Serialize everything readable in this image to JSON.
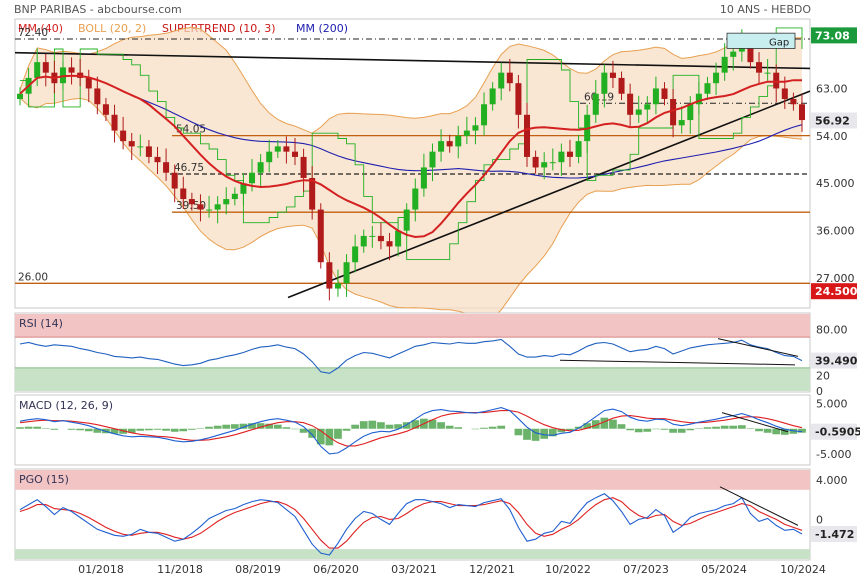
{
  "header": {
    "title": "BNP PARIBAS - abcbourse.com",
    "period": "10 ANS - HEBDO"
  },
  "colors": {
    "mm40": "#d42020",
    "boll": "#e8a050",
    "supertrend": "#c81818",
    "mm200": "#2020b0",
    "price_up": "#22b022",
    "price_down": "#b01a1a",
    "rsi_line": "#2060c0",
    "macd_line": "#2060d0",
    "signal_line": "#e02020",
    "hist": "#3a9a3a",
    "band_top": "#f2c4c4",
    "band_bottom": "#c8e2c8",
    "price_box": "#1a9a3a",
    "low_box": "#d81818",
    "level_line": "#c06010",
    "gap_box": "#c8eef0"
  },
  "chart_data": [
    {
      "type": "candlestick",
      "panel": "price",
      "legend": [
        {
          "label": "MM (40)",
          "color": "#d42020"
        },
        {
          "label": "BOLL (20, 2)",
          "color": "#e8a050"
        },
        {
          "label": "SUPERTREND (10, 3)",
          "color": "#c81818"
        },
        {
          "label": "MM (200)",
          "color": "#2020b0"
        }
      ],
      "y_ticks": [
        "63.00",
        "54.00",
        "45.000",
        "36.000",
        "27.000"
      ],
      "y_tick_values": [
        63,
        54,
        45,
        36,
        27
      ],
      "ylim": [
        21.5,
        76
      ],
      "x_ticks": [
        "01/2018",
        "11/2018",
        "08/2019",
        "06/2020",
        "03/2021",
        "12/2021",
        "10/2022",
        "07/2023",
        "05/2024",
        "10/2024"
      ],
      "last_price": "56.92",
      "last_price_value": 56.92,
      "high_marker": "73.08",
      "high_marker_value": 73.08,
      "low_marker": "24.500",
      "low_marker_value": 24.5,
      "levels": [
        {
          "label": "72.40",
          "value": 72.4,
          "style": "dashdot"
        },
        {
          "label": "54.05",
          "value": 54.05,
          "style": "solid"
        },
        {
          "label": "46.75",
          "value": 46.75,
          "style": "dashed"
        },
        {
          "label": "39.50",
          "value": 39.5,
          "style": "solid"
        },
        {
          "label": "26.00",
          "value": 26.0,
          "style": "solid"
        },
        {
          "label": "60.19",
          "value": 60.19,
          "style": "dashdot"
        }
      ],
      "annotation": "Gap",
      "close_series": [
        62,
        65,
        68,
        66,
        64,
        67,
        66,
        65,
        63,
        60,
        58,
        55,
        53,
        52,
        52,
        50,
        49,
        47,
        44,
        42,
        41,
        40,
        40,
        41,
        42,
        43,
        45,
        47,
        49,
        51,
        52,
        51,
        50,
        46,
        40,
        30,
        25,
        26,
        30,
        33,
        35,
        35,
        34,
        33,
        36,
        40,
        44,
        48,
        51,
        53,
        52,
        54,
        55,
        56,
        60,
        63,
        66,
        64,
        58,
        50,
        48,
        49,
        49,
        51,
        50,
        53,
        58,
        62,
        66,
        65,
        62,
        58,
        59,
        60,
        63,
        61,
        56,
        57,
        60,
        62,
        64,
        66,
        69,
        70,
        72,
        68,
        66,
        66,
        63,
        61,
        60,
        57
      ]
    },
    {
      "type": "line",
      "panel": "rsi",
      "title": "RSI (14)",
      "y_ticks": [
        "80.00",
        "20",
        "0"
      ],
      "y_tick_values": [
        80,
        20,
        0
      ],
      "ylim": [
        0,
        100
      ],
      "bands": [
        70,
        30
      ],
      "last_value": "39.490",
      "values": [
        61,
        63,
        60,
        58,
        60,
        59,
        58,
        55,
        53,
        50,
        48,
        45,
        44,
        43,
        44,
        42,
        41,
        38,
        35,
        33,
        34,
        36,
        40,
        42,
        45,
        47,
        50,
        54,
        57,
        58,
        60,
        57,
        55,
        48,
        38,
        25,
        23,
        30,
        40,
        46,
        50,
        49,
        46,
        43,
        48,
        53,
        58,
        60,
        63,
        62,
        61,
        63,
        62,
        62,
        64,
        65,
        67,
        58,
        48,
        44,
        44,
        46,
        45,
        48,
        47,
        52,
        58,
        62,
        63,
        61,
        56,
        51,
        53,
        54,
        58,
        55,
        48,
        52,
        56,
        58,
        60,
        61,
        62,
        63,
        66,
        60,
        57,
        55,
        50,
        46,
        45,
        39.49
      ]
    },
    {
      "type": "line",
      "panel": "macd",
      "title": "MACD (12, 26, 9)",
      "y_ticks": [
        "5.000",
        "0",
        "-5.000"
      ],
      "y_tick_values": [
        5,
        0,
        -5
      ],
      "ylim": [
        -7,
        6.5
      ],
      "last_value": "-0.5905",
      "macd": [
        1.5,
        1.8,
        2.0,
        1.8,
        1.4,
        1.6,
        1.3,
        1.0,
        0.6,
        0.0,
        -0.5,
        -1.0,
        -1.4,
        -1.6,
        -1.5,
        -1.6,
        -1.7,
        -2.0,
        -2.4,
        -2.6,
        -2.5,
        -2.2,
        -1.8,
        -1.3,
        -0.8,
        -0.3,
        0.3,
        0.9,
        1.4,
        1.8,
        2.0,
        1.7,
        1.3,
        0.4,
        -1.2,
        -3.5,
        -5.0,
        -4.8,
        -3.8,
        -2.6,
        -1.5,
        -0.8,
        -0.5,
        -0.6,
        -0.1,
        0.8,
        1.9,
        3.0,
        3.6,
        3.8,
        3.5,
        3.4,
        3.2,
        3.1,
        3.4,
        3.8,
        4.2,
        3.6,
        2.0,
        0.3,
        -0.8,
        -1.2,
        -1.3,
        -0.9,
        -0.7,
        0.1,
        1.2,
        2.4,
        3.6,
        3.9,
        3.4,
        2.3,
        1.7,
        1.5,
        1.9,
        1.8,
        0.9,
        0.6,
        0.9,
        1.3,
        1.6,
        1.9,
        2.3,
        2.6,
        3.0,
        2.5,
        1.8,
        1.2,
        0.5,
        -0.1,
        -0.4,
        -0.59
      ],
      "signal": [
        1.2,
        1.4,
        1.6,
        1.7,
        1.6,
        1.6,
        1.5,
        1.3,
        1.1,
        0.8,
        0.4,
        0.0,
        -0.4,
        -0.8,
        -1.1,
        -1.3,
        -1.5,
        -1.6,
        -1.8,
        -2.1,
        -2.3,
        -2.3,
        -2.2,
        -1.9,
        -1.6,
        -1.2,
        -0.7,
        -0.2,
        0.3,
        0.8,
        1.2,
        1.4,
        1.4,
        1.2,
        0.6,
        -0.4,
        -1.7,
        -2.8,
        -3.4,
        -3.4,
        -3.0,
        -2.4,
        -1.8,
        -1.4,
        -1.0,
        -0.5,
        0.2,
        1.0,
        1.8,
        2.5,
        2.9,
        3.1,
        3.2,
        3.2,
        3.2,
        3.4,
        3.6,
        3.6,
        3.3,
        2.5,
        1.6,
        0.8,
        0.2,
        -0.2,
        -0.4,
        -0.3,
        0.1,
        0.7,
        1.4,
        2.1,
        2.5,
        2.6,
        2.4,
        2.1,
        2.0,
        2.0,
        1.7,
        1.4,
        1.2,
        1.2,
        1.3,
        1.5,
        1.7,
        2.0,
        2.3,
        2.4,
        2.3,
        2.0,
        1.6,
        1.1,
        0.6,
        0.2
      ]
    },
    {
      "type": "line",
      "panel": "pgo",
      "title": "PGO (15)",
      "y_ticks": [
        "4.000",
        "0"
      ],
      "y_tick_values": [
        4,
        0
      ],
      "ylim": [
        -4,
        5
      ],
      "bands": [
        3,
        -3
      ],
      "last_value": "-1.472",
      "pgo": [
        1.0,
        1.5,
        2.0,
        1.3,
        0.5,
        1.2,
        0.8,
        0.2,
        -0.4,
        -1.0,
        -1.3,
        -1.6,
        -1.7,
        -1.5,
        -1.0,
        -1.3,
        -1.4,
        -1.8,
        -2.2,
        -2.0,
        -1.4,
        -0.7,
        0.1,
        0.5,
        0.9,
        1.1,
        1.5,
        1.8,
        2.0,
        1.9,
        1.7,
        1.0,
        0.3,
        -1.1,
        -2.5,
        -3.4,
        -3.6,
        -2.4,
        -1.0,
        0.1,
        0.8,
        0.6,
        0.0,
        -0.5,
        0.6,
        1.6,
        2.0,
        2.0,
        1.8,
        1.6,
        1.2,
        1.5,
        1.4,
        1.3,
        1.7,
        1.9,
        2.1,
        1.0,
        -0.8,
        -2.2,
        -2.0,
        -1.4,
        -1.2,
        -0.2,
        -0.4,
        0.7,
        1.7,
        2.2,
        2.6,
        1.9,
        0.8,
        -0.5,
        0.0,
        0.2,
        1.0,
        0.4,
        -1.3,
        -0.7,
        0.2,
        0.6,
        0.8,
        1.0,
        1.4,
        1.6,
        2.2,
        0.6,
        -0.2,
        0.1,
        -0.6,
        -1.1,
        -1.0,
        -1.47
      ],
      "signal": [
        0.8,
        1.1,
        1.5,
        1.5,
        1.1,
        1.0,
        0.9,
        0.6,
        0.2,
        -0.3,
        -0.8,
        -1.2,
        -1.5,
        -1.6,
        -1.4,
        -1.3,
        -1.3,
        -1.5,
        -1.8,
        -2.0,
        -1.8,
        -1.4,
        -0.8,
        -0.2,
        0.3,
        0.7,
        1.0,
        1.3,
        1.6,
        1.8,
        1.8,
        1.5,
        1.0,
        0.1,
        -1.0,
        -2.1,
        -2.9,
        -2.9,
        -2.2,
        -1.2,
        -0.3,
        0.2,
        0.3,
        0.0,
        0.1,
        0.6,
        1.2,
        1.6,
        1.8,
        1.8,
        1.6,
        1.4,
        1.4,
        1.4,
        1.5,
        1.7,
        1.9,
        1.6,
        0.7,
        -0.5,
        -1.4,
        -1.7,
        -1.5,
        -1.0,
        -0.6,
        0.0,
        0.8,
        1.5,
        2.0,
        2.2,
        1.8,
        1.0,
        0.4,
        0.1,
        0.4,
        0.5,
        -0.2,
        -0.6,
        -0.4,
        0.0,
        0.4,
        0.7,
        1.0,
        1.3,
        1.6,
        1.4,
        0.8,
        0.4,
        0.0,
        -0.5,
        -0.8,
        -1.1
      ]
    }
  ]
}
